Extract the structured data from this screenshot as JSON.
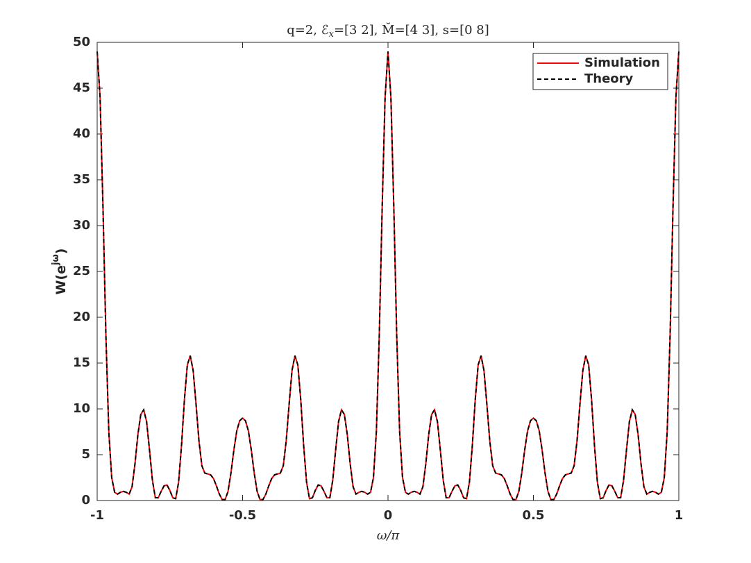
{
  "chart_data": {
    "type": "line",
    "title": [
      "q=2, ℰ",
      "x",
      "=[3 2], M̆=[4 3], s=[0 8]"
    ],
    "x_label": "ω/π",
    "y_label": [
      "W(e",
      "jω",
      ")"
    ],
    "xlim": [
      -1,
      1
    ],
    "xticks": [
      -1,
      -0.5,
      0,
      0.5,
      1
    ],
    "ylim": [
      0,
      50
    ],
    "yticks": [
      0,
      5,
      10,
      15,
      20,
      25,
      30,
      35,
      40,
      45,
      50
    ],
    "legend": "upper right",
    "x": [
      -1,
      -0.99,
      -0.98,
      -0.97,
      -0.96,
      -0.95,
      -0.94,
      -0.93,
      -0.92,
      -0.91,
      -0.9,
      -0.89,
      -0.88,
      -0.87,
      -0.86,
      -0.85,
      -0.84,
      -0.83,
      -0.82,
      -0.81,
      -0.8,
      -0.79,
      -0.78,
      -0.77,
      -0.76,
      -0.75,
      -0.74,
      -0.73,
      -0.72,
      -0.71,
      -0.7,
      -0.69,
      -0.68,
      -0.67,
      -0.66,
      -0.65,
      -0.64,
      -0.63,
      -0.62,
      -0.61,
      -0.6,
      -0.59,
      -0.58,
      -0.57,
      -0.56,
      -0.55,
      -0.54,
      -0.53,
      -0.52,
      -0.51,
      -0.5,
      -0.49,
      -0.48,
      -0.47,
      -0.46,
      -0.45,
      -0.44,
      -0.43,
      -0.42,
      -0.41,
      -0.4,
      -0.39,
      -0.38,
      -0.37,
      -0.36,
      -0.35,
      -0.34,
      -0.33,
      -0.32,
      -0.31,
      -0.3,
      -0.29,
      -0.28,
      -0.27,
      -0.26,
      -0.25,
      -0.24,
      -0.23,
      -0.22,
      -0.21,
      -0.2,
      -0.19,
      -0.18,
      -0.17,
      -0.16,
      -0.15,
      -0.14,
      -0.13,
      -0.12,
      -0.11,
      -0.1,
      -0.09,
      -0.08,
      -0.07,
      -0.06,
      -0.05,
      -0.04,
      -0.03,
      -0.02,
      -0.01,
      0,
      0.01,
      0.02,
      0.03,
      0.04,
      0.05,
      0.06,
      0.07,
      0.08,
      0.09,
      0.1,
      0.11,
      0.12,
      0.13,
      0.14,
      0.15,
      0.16,
      0.17,
      0.18,
      0.19,
      0.2,
      0.21,
      0.22,
      0.23,
      0.24,
      0.25,
      0.26,
      0.27,
      0.28,
      0.29,
      0.3,
      0.31,
      0.32,
      0.33,
      0.34,
      0.35,
      0.36,
      0.37,
      0.38,
      0.39,
      0.4,
      0.41,
      0.42,
      0.43,
      0.44,
      0.45,
      0.46,
      0.47,
      0.48,
      0.49,
      0.5,
      0.51,
      0.52,
      0.53,
      0.54,
      0.55,
      0.56,
      0.57,
      0.58,
      0.59,
      0.6,
      0.61,
      0.62,
      0.63,
      0.64,
      0.65,
      0.66,
      0.67,
      0.68,
      0.69,
      0.7,
      0.71,
      0.72,
      0.73,
      0.74,
      0.75,
      0.76,
      0.77,
      0.78,
      0.79,
      0.8,
      0.81,
      0.82,
      0.83,
      0.84,
      0.85,
      0.86,
      0.87,
      0.88,
      0.89,
      0.9,
      0.91,
      0.92,
      0.93,
      0.94,
      0.95,
      0.96,
      0.97,
      0.98,
      0.99,
      1
    ],
    "series": [
      {
        "name": "Simulation",
        "color": "#ff0000",
        "dash": false,
        "values": [
          49,
          44,
          32,
          18,
          7.5,
          2.5,
          0.9,
          0.7,
          0.9,
          1,
          0.9,
          0.7,
          1.5,
          4,
          7.2,
          9.4,
          9.9,
          8.6,
          5.5,
          2.2,
          0.3,
          0.3,
          1,
          1.6,
          1.7,
          1.1,
          0.3,
          0.2,
          2,
          6,
          11,
          14.8,
          15.8,
          14.2,
          10.5,
          6.5,
          3.8,
          3,
          2.9,
          2.8,
          2.4,
          1.6,
          0.7,
          0.1,
          0.1,
          1,
          3,
          5.5,
          7.6,
          8.7,
          9,
          8.7,
          7.6,
          5.5,
          3,
          1,
          0.1,
          0.1,
          0.7,
          1.6,
          2.4,
          2.8,
          2.9,
          3,
          3.8,
          6.5,
          10.5,
          14.2,
          15.8,
          14.8,
          11,
          6,
          2,
          0.2,
          0.3,
          1.1,
          1.7,
          1.6,
          1,
          0.3,
          0.3,
          2.2,
          5.5,
          8.6,
          9.9,
          9.4,
          7.2,
          4,
          1.5,
          0.7,
          0.9,
          1,
          0.9,
          0.7,
          0.9,
          2.5,
          7.5,
          18,
          32,
          44,
          49,
          44,
          32,
          18,
          7.5,
          2.5,
          0.9,
          0.7,
          0.9,
          1,
          0.9,
          0.7,
          1.5,
          4,
          7.2,
          9.4,
          9.9,
          8.6,
          5.5,
          2.2,
          0.3,
          0.3,
          1,
          1.6,
          1.7,
          1.1,
          0.3,
          0.2,
          2,
          6,
          11,
          14.8,
          15.8,
          14.2,
          10.5,
          6.5,
          3.8,
          3,
          2.9,
          2.8,
          2.4,
          1.6,
          0.7,
          0.1,
          0.1,
          1,
          3,
          5.5,
          7.6,
          8.7,
          9,
          8.7,
          7.6,
          5.5,
          3,
          1,
          0.1,
          0.1,
          0.7,
          1.6,
          2.4,
          2.8,
          2.9,
          3,
          3.8,
          6.5,
          10.5,
          14.2,
          15.8,
          14.8,
          11,
          6,
          2,
          0.2,
          0.3,
          1.1,
          1.7,
          1.6,
          1,
          0.3,
          0.3,
          2.2,
          5.5,
          8.6,
          9.9,
          9.4,
          7.2,
          4,
          1.5,
          0.7,
          0.9,
          1,
          0.9,
          0.7,
          0.9,
          2.5,
          7.5,
          18,
          32,
          44,
          49
        ]
      },
      {
        "name": "Theory",
        "color": "#000000",
        "dash": true,
        "values": [
          49,
          44,
          32,
          18,
          7.5,
          2.5,
          0.9,
          0.7,
          0.9,
          1,
          0.9,
          0.7,
          1.5,
          4,
          7.2,
          9.4,
          9.9,
          8.6,
          5.5,
          2.2,
          0.3,
          0.3,
          1,
          1.6,
          1.7,
          1.1,
          0.3,
          0.2,
          2,
          6,
          11,
          14.8,
          15.8,
          14.2,
          10.5,
          6.5,
          3.8,
          3,
          2.9,
          2.8,
          2.4,
          1.6,
          0.7,
          0.1,
          0.1,
          1,
          3,
          5.5,
          7.6,
          8.7,
          9,
          8.7,
          7.6,
          5.5,
          3,
          1,
          0.1,
          0.1,
          0.7,
          1.6,
          2.4,
          2.8,
          2.9,
          3,
          3.8,
          6.5,
          10.5,
          14.2,
          15.8,
          14.8,
          11,
          6,
          2,
          0.2,
          0.3,
          1.1,
          1.7,
          1.6,
          1,
          0.3,
          0.3,
          2.2,
          5.5,
          8.6,
          9.9,
          9.4,
          7.2,
          4,
          1.5,
          0.7,
          0.9,
          1,
          0.9,
          0.7,
          0.9,
          2.5,
          7.5,
          18,
          32,
          44,
          49,
          44,
          32,
          18,
          7.5,
          2.5,
          0.9,
          0.7,
          0.9,
          1,
          0.9,
          0.7,
          1.5,
          4,
          7.2,
          9.4,
          9.9,
          8.6,
          5.5,
          2.2,
          0.3,
          0.3,
          1,
          1.6,
          1.7,
          1.1,
          0.3,
          0.2,
          2,
          6,
          11,
          14.8,
          15.8,
          14.2,
          10.5,
          6.5,
          3.8,
          3,
          2.9,
          2.8,
          2.4,
          1.6,
          0.7,
          0.1,
          0.1,
          1,
          3,
          5.5,
          7.6,
          8.7,
          9,
          8.7,
          7.6,
          5.5,
          3,
          1,
          0.1,
          0.1,
          0.7,
          1.6,
          2.4,
          2.8,
          2.9,
          3,
          3.8,
          6.5,
          10.5,
          14.2,
          15.8,
          14.8,
          11,
          6,
          2,
          0.2,
          0.3,
          1.1,
          1.7,
          1.6,
          1,
          0.3,
          0.3,
          2.2,
          5.5,
          8.6,
          9.9,
          9.4,
          7.2,
          4,
          1.5,
          0.7,
          0.9,
          1,
          0.9,
          0.7,
          0.9,
          2.5,
          7.5,
          18,
          32,
          44,
          49
        ]
      }
    ]
  }
}
